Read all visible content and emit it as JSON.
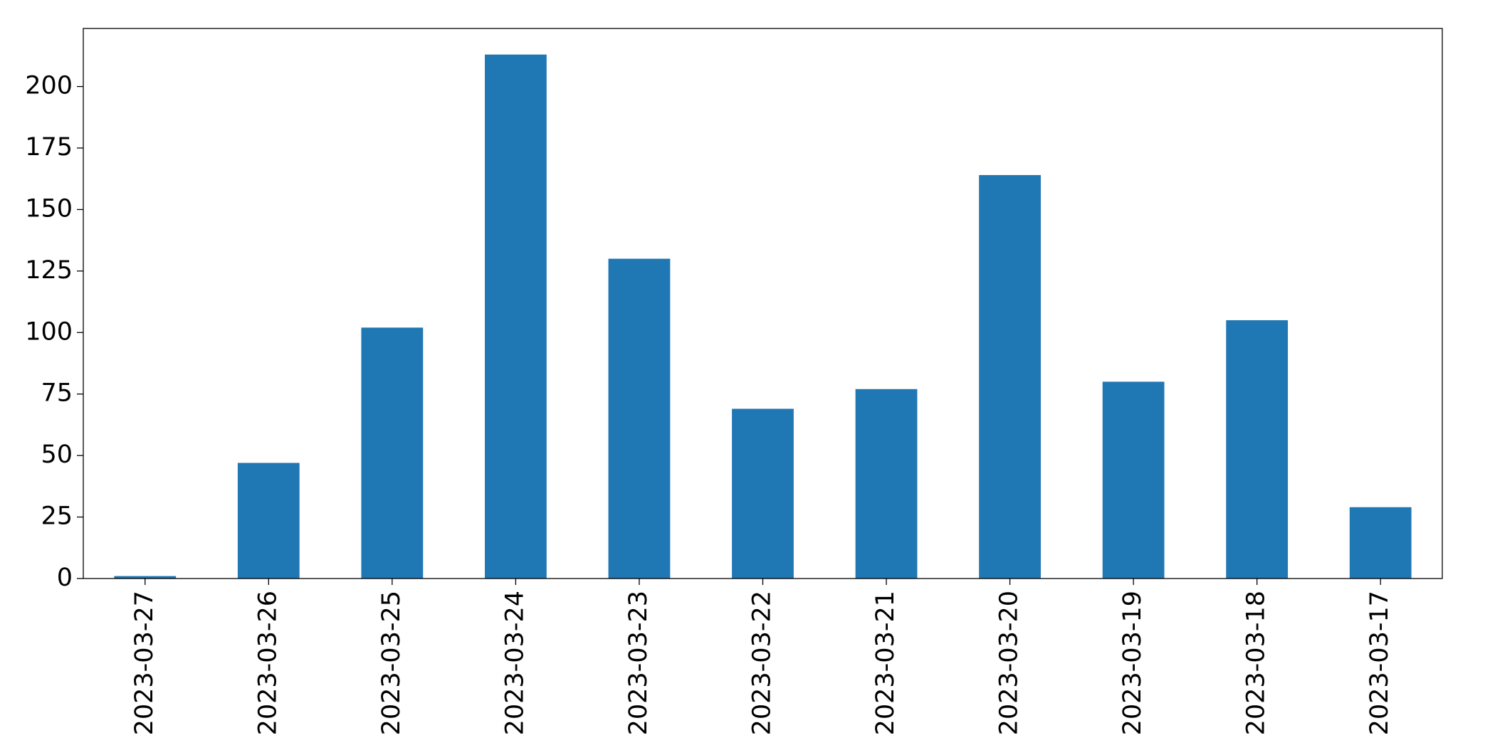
{
  "chart_data": {
    "type": "bar",
    "categories": [
      "2023-03-27",
      "2023-03-26",
      "2023-03-25",
      "2023-03-24",
      "2023-03-23",
      "2023-03-22",
      "2023-03-21",
      "2023-03-20",
      "2023-03-19",
      "2023-03-18",
      "2023-03-17"
    ],
    "values": [
      1,
      47,
      102,
      213,
      130,
      69,
      77,
      164,
      80,
      105,
      29
    ],
    "color": "#1f77b4",
    "ylim": [
      0,
      223.6
    ],
    "yticks": [
      0,
      25,
      50,
      75,
      100,
      125,
      150,
      175,
      200
    ],
    "grid": false
  }
}
